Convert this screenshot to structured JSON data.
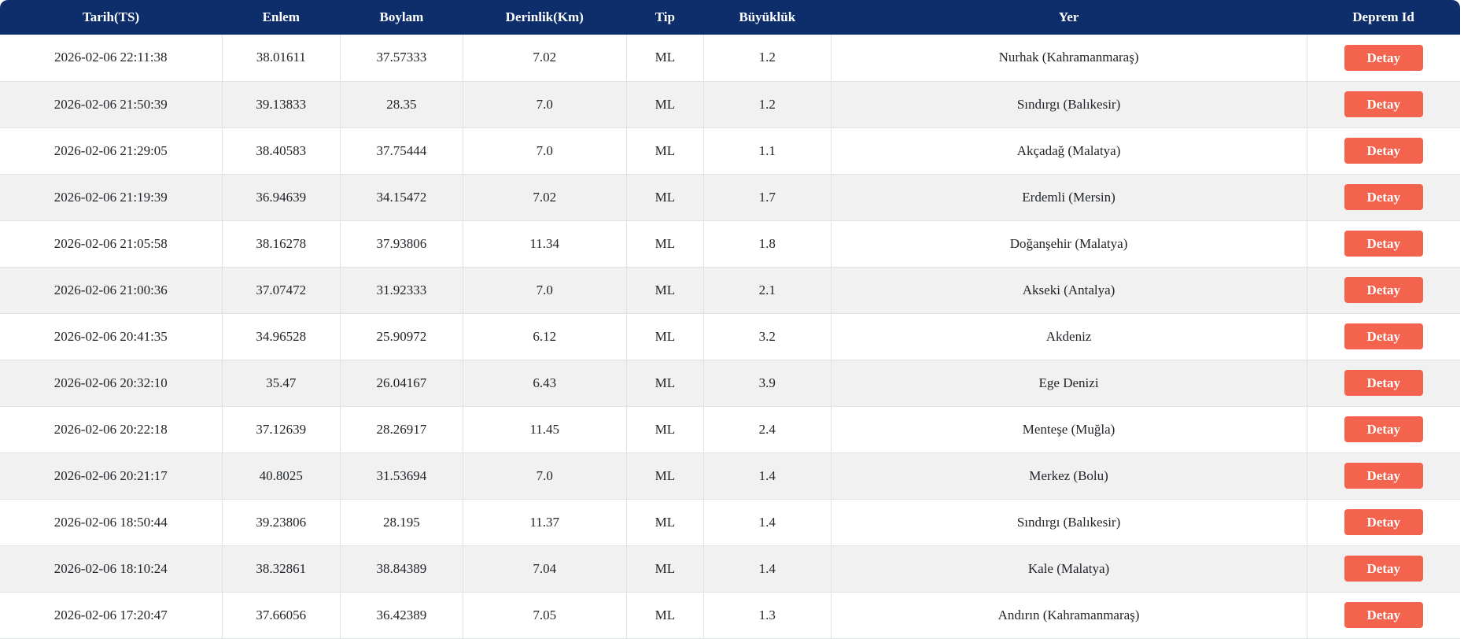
{
  "colors": {
    "header_bg": "#0d2d6b",
    "header_text": "#ffffff",
    "button_bg": "#f4634e",
    "button_text": "#ffffff",
    "row_alt_bg": "#f1f1f2",
    "border": "#dee2e6",
    "text": "#212529"
  },
  "table": {
    "columns": [
      {
        "key": "tarih",
        "label": "Tarih(TS)"
      },
      {
        "key": "enlem",
        "label": "Enlem"
      },
      {
        "key": "boylam",
        "label": "Boylam"
      },
      {
        "key": "derinlik",
        "label": "Derinlik(Km)"
      },
      {
        "key": "tip",
        "label": "Tip"
      },
      {
        "key": "buyukluk",
        "label": "Büyüklük"
      },
      {
        "key": "yer",
        "label": "Yer"
      },
      {
        "key": "deprem_id",
        "label": "Deprem Id"
      }
    ],
    "detay_label": "Detay",
    "rows": [
      {
        "tarih": "2026-02-06 22:11:38",
        "enlem": "38.01611",
        "boylam": "37.57333",
        "derinlik": "7.02",
        "tip": "ML",
        "buyukluk": "1.2",
        "yer": "Nurhak (Kahramanmaraş)"
      },
      {
        "tarih": "2026-02-06 21:50:39",
        "enlem": "39.13833",
        "boylam": "28.35",
        "derinlik": "7.0",
        "tip": "ML",
        "buyukluk": "1.2",
        "yer": "Sındırgı (Balıkesir)"
      },
      {
        "tarih": "2026-02-06 21:29:05",
        "enlem": "38.40583",
        "boylam": "37.75444",
        "derinlik": "7.0",
        "tip": "ML",
        "buyukluk": "1.1",
        "yer": "Akçadağ (Malatya)"
      },
      {
        "tarih": "2026-02-06 21:19:39",
        "enlem": "36.94639",
        "boylam": "34.15472",
        "derinlik": "7.02",
        "tip": "ML",
        "buyukluk": "1.7",
        "yer": "Erdemli (Mersin)"
      },
      {
        "tarih": "2026-02-06 21:05:58",
        "enlem": "38.16278",
        "boylam": "37.93806",
        "derinlik": "11.34",
        "tip": "ML",
        "buyukluk": "1.8",
        "yer": "Doğanşehir (Malatya)"
      },
      {
        "tarih": "2026-02-06 21:00:36",
        "enlem": "37.07472",
        "boylam": "31.92333",
        "derinlik": "7.0",
        "tip": "ML",
        "buyukluk": "2.1",
        "yer": "Akseki (Antalya)"
      },
      {
        "tarih": "2026-02-06 20:41:35",
        "enlem": "34.96528",
        "boylam": "25.90972",
        "derinlik": "6.12",
        "tip": "ML",
        "buyukluk": "3.2",
        "yer": "Akdeniz"
      },
      {
        "tarih": "2026-02-06 20:32:10",
        "enlem": "35.47",
        "boylam": "26.04167",
        "derinlik": "6.43",
        "tip": "ML",
        "buyukluk": "3.9",
        "yer": "Ege Denizi"
      },
      {
        "tarih": "2026-02-06 20:22:18",
        "enlem": "37.12639",
        "boylam": "28.26917",
        "derinlik": "11.45",
        "tip": "ML",
        "buyukluk": "2.4",
        "yer": "Menteşe (Muğla)"
      },
      {
        "tarih": "2026-02-06 20:21:17",
        "enlem": "40.8025",
        "boylam": "31.53694",
        "derinlik": "7.0",
        "tip": "ML",
        "buyukluk": "1.4",
        "yer": "Merkez (Bolu)"
      },
      {
        "tarih": "2026-02-06 18:50:44",
        "enlem": "39.23806",
        "boylam": "28.195",
        "derinlik": "11.37",
        "tip": "ML",
        "buyukluk": "1.4",
        "yer": "Sındırgı (Balıkesir)"
      },
      {
        "tarih": "2026-02-06 18:10:24",
        "enlem": "38.32861",
        "boylam": "38.84389",
        "derinlik": "7.04",
        "tip": "ML",
        "buyukluk": "1.4",
        "yer": "Kale (Malatya)"
      },
      {
        "tarih": "2026-02-06 17:20:47",
        "enlem": "37.66056",
        "boylam": "36.42389",
        "derinlik": "7.05",
        "tip": "ML",
        "buyukluk": "1.3",
        "yer": "Andırın (Kahramanmaraş)"
      }
    ]
  }
}
